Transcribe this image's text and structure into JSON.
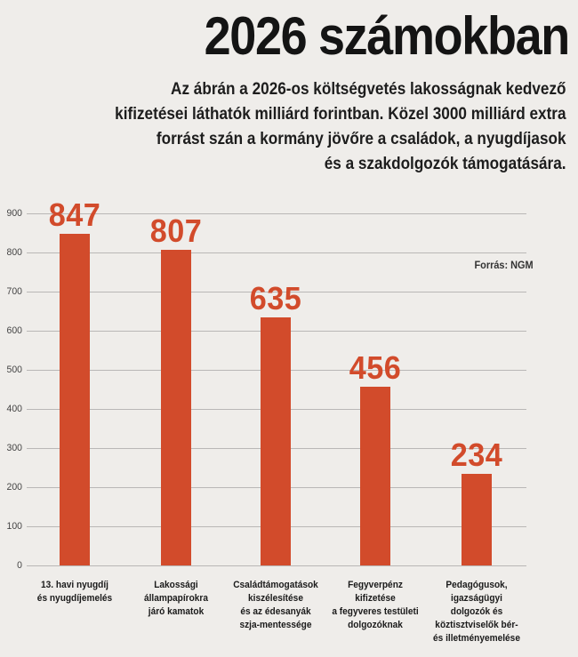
{
  "page": {
    "title": "2026 számokban",
    "subtitle_lines": [
      "Az ábrán a 2026-os költségvetés lakosságnak kedvező",
      "kifizetései láthatók milliárd forintban. Közel 3000 milliárd extra",
      "forrást szán a kormány jövőre a családok, a nyugdíjasok",
      "és a szakdolgozók támogatására."
    ],
    "source_label": "Forrás: NGM"
  },
  "colors": {
    "background": "#efedea",
    "bar": "#d24b2b",
    "value_label": "#d24b2b",
    "gridline": "#b9b7b6",
    "title_text": "#141414",
    "subtitle_text": "#1d1d1d",
    "category_text": "#1a1a1a",
    "axis_text": "#444444",
    "source_text": "#333333"
  },
  "chart_data": {
    "type": "bar",
    "title": "2026 számokban",
    "categories": [
      "13. havi nyugdíj és nyugdíjemelés",
      "Lakossági állampapírokra járó kamatok",
      "Családtámogatások kiszélesítése és az édesanyák szja-mentessége",
      "Fegyverpénz kifizetése a fegyveres testületi dolgozóknak",
      "Pedagógusok, igazságügyi dolgozók és köztisztviselők bér- és illetményemelése"
    ],
    "category_lines": [
      [
        "13. havi nyugdíj",
        "és nyugdíjemelés"
      ],
      [
        "Lakossági",
        "állampapírokra",
        "járó kamatok"
      ],
      [
        "Családtámogatások",
        "kiszélesítése",
        "és az édesanyák",
        "szja-mentessége"
      ],
      [
        "Fegyverpénz",
        "kifizetése",
        "a fegyveres testületi",
        "dolgozóknak"
      ],
      [
        "Pedagógusok,",
        "igazságügyi",
        "dolgozók és",
        "köztisztviselők bér-",
        "és illetményemelése"
      ]
    ],
    "values": [
      847,
      807,
      635,
      456,
      234
    ],
    "unit": "milliárd forint",
    "xlabel": "",
    "ylabel": "",
    "ylim": [
      0,
      900
    ],
    "yticks": [
      0,
      100,
      200,
      300,
      400,
      500,
      600,
      700,
      800,
      900
    ],
    "grid": true,
    "legend_position": "none",
    "source": "Forrás: NGM"
  }
}
